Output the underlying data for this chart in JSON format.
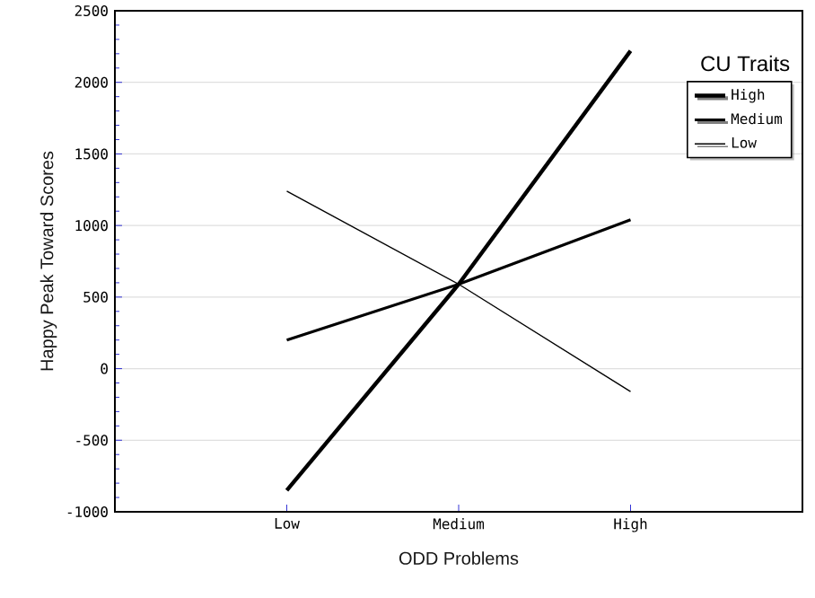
{
  "chart_data": {
    "type": "line",
    "xlabel": "ODD Problems",
    "ylabel": "Happy Peak Toward Scores",
    "legend_title": "CU Traits",
    "categories": [
      "Low",
      "Medium",
      "High"
    ],
    "series": [
      {
        "name": "High",
        "color": "#000000",
        "values": [
          -850,
          590,
          2220
        ]
      },
      {
        "name": "Medium",
        "color": "#000000",
        "values": [
          200,
          590,
          1040
        ]
      },
      {
        "name": "Low",
        "color": "#000000",
        "values": [
          1240,
          590,
          -160
        ]
      }
    ],
    "ylim": [
      -1000,
      2500
    ],
    "yticks": [
      -1000,
      -500,
      0,
      500,
      1000,
      1500,
      2000,
      2500
    ],
    "grid": "y",
    "legend": "top right",
    "marker": "none",
    "line_style": "solid"
  }
}
